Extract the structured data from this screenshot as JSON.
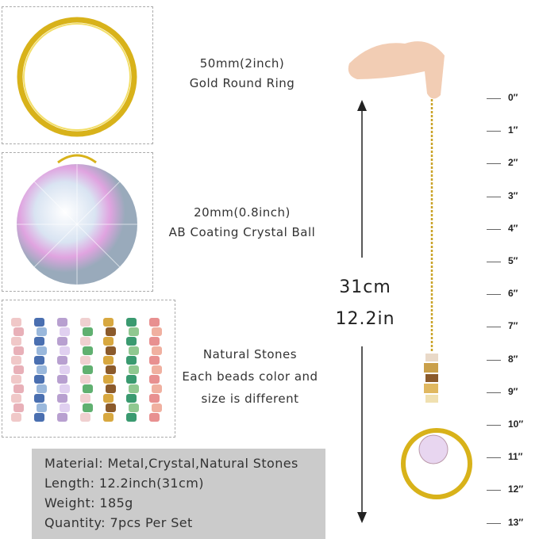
{
  "components": [
    {
      "caption_lines": [
        "50mm(2inch)",
        "Gold Round Ring"
      ]
    },
    {
      "caption_lines": [
        "20mm(0.8inch)",
        "AB Coating Crystal Ball"
      ]
    },
    {
      "caption_lines": [
        "Natural Stones",
        "Each beads color and",
        "size is different"
      ]
    }
  ],
  "specs": [
    "Material: Metal,Crystal,Natural Stones",
    "Length: 12.2inch(31cm)",
    "Weight: 185g",
    "Quantity: 7pcs Per Set"
  ],
  "dimension": {
    "cm": "31cm",
    "inch": "12.2in"
  },
  "ruler": [
    "0″",
    "1″",
    "2″",
    "3″",
    "4″",
    "5″",
    "6″",
    "7″",
    "8″",
    "9″",
    "10″",
    "11″",
    "12″",
    "13″"
  ],
  "colors": {
    "gold": "#d8b21a",
    "spec_bg": "#cbcbcb"
  }
}
